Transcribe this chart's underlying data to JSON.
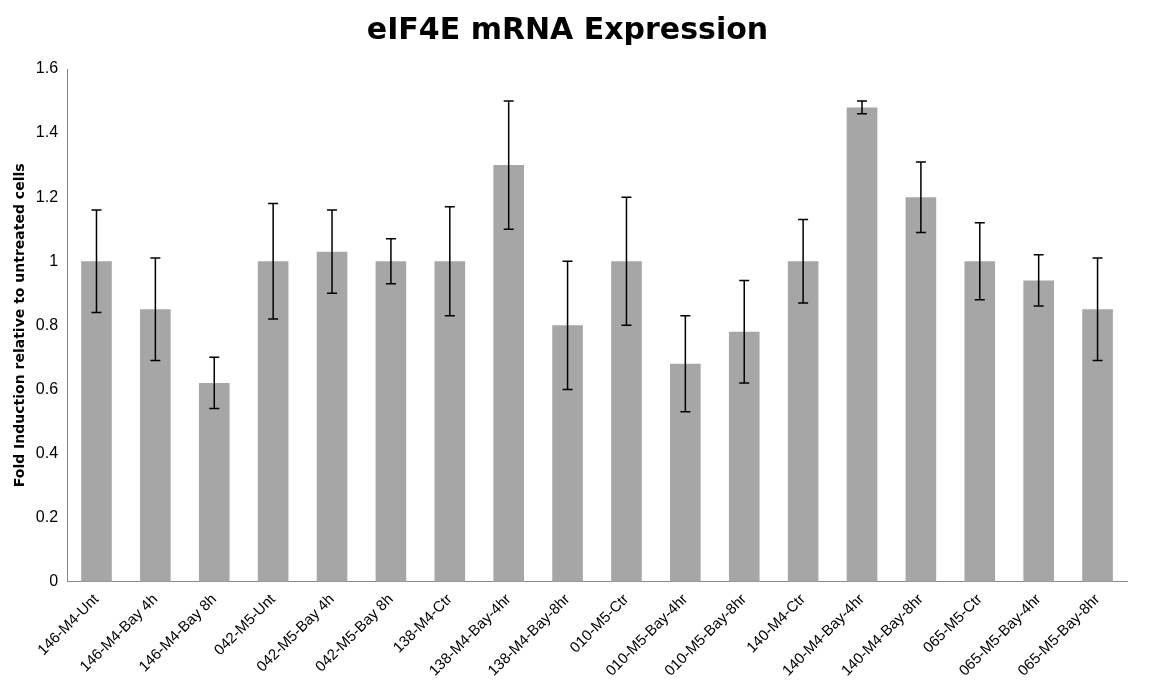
{
  "chart_data": {
    "type": "bar",
    "title": "eIF4E mRNA Expression",
    "ylabel": "Fold Induction relative to untreated cells",
    "categories": [
      "146-M4-Unt",
      "146-M4-Bay 4h",
      "146-M4-Bay 8h",
      "042-M5-Unt",
      "042-M5-Bay 4h",
      "042-M5-Bay 8h",
      "138-M4-Ctr",
      "138-M4-Bay-4hr",
      "138-M4-Bay-8hr",
      "010-M5-Ctr",
      "010-M5-Bay-4hr",
      "010-M5-Bay-8hr",
      "140-M4-Ctr",
      "140-M4-Bay-4hr",
      "140-M4-Bay-8hr",
      "065-M5-Ctr",
      "065-M5-Bay-4hr",
      "065-M5-Bay-8hr"
    ],
    "values": [
      1.0,
      0.85,
      0.62,
      1.0,
      1.03,
      1.0,
      1.0,
      1.3,
      0.8,
      1.0,
      0.68,
      0.78,
      1.0,
      1.48,
      1.2,
      1.0,
      0.94,
      0.85
    ],
    "errors": [
      0.16,
      0.16,
      0.08,
      0.18,
      0.13,
      0.07,
      0.17,
      0.2,
      0.2,
      0.2,
      0.15,
      0.16,
      0.13,
      0.02,
      0.11,
      0.12,
      0.08,
      0.16
    ],
    "color": "#a6a6a6",
    "ylim": [
      0,
      1.6
    ],
    "yticks": [
      0,
      0.2,
      0.4,
      0.6,
      0.8,
      1,
      1.2,
      1.4,
      1.6
    ],
    "grid": false,
    "legend": false
  }
}
